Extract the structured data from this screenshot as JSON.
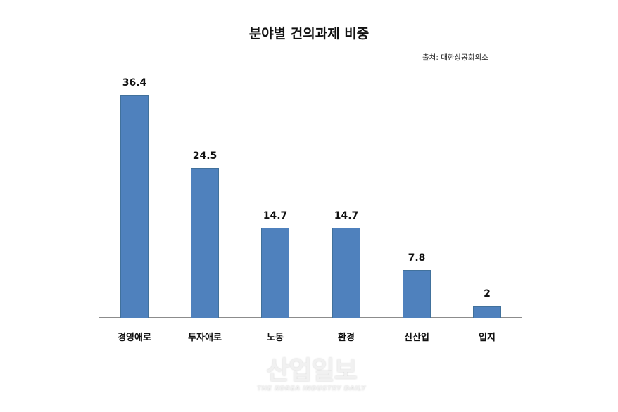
{
  "chart_data": {
    "type": "bar",
    "title": "분야별 건의과제 비중",
    "source": "출처: 대한상공회의소",
    "categories": [
      "경영애로",
      "투자애로",
      "노동",
      "환경",
      "신산업",
      "입지"
    ],
    "values": [
      36.4,
      24.5,
      14.7,
      14.7,
      7.8,
      2
    ],
    "value_labels": [
      "36.4",
      "24.5",
      "14.7",
      "14.7",
      "7.8",
      "2"
    ],
    "xlabel": "",
    "ylabel": "",
    "ylim": [
      0,
      40
    ],
    "grid": false,
    "legend": null,
    "bar_color": "#4f81bd"
  },
  "watermark": {
    "main": "산업일보",
    "sub": "THE KOREA INDUSTRY DAILY"
  }
}
